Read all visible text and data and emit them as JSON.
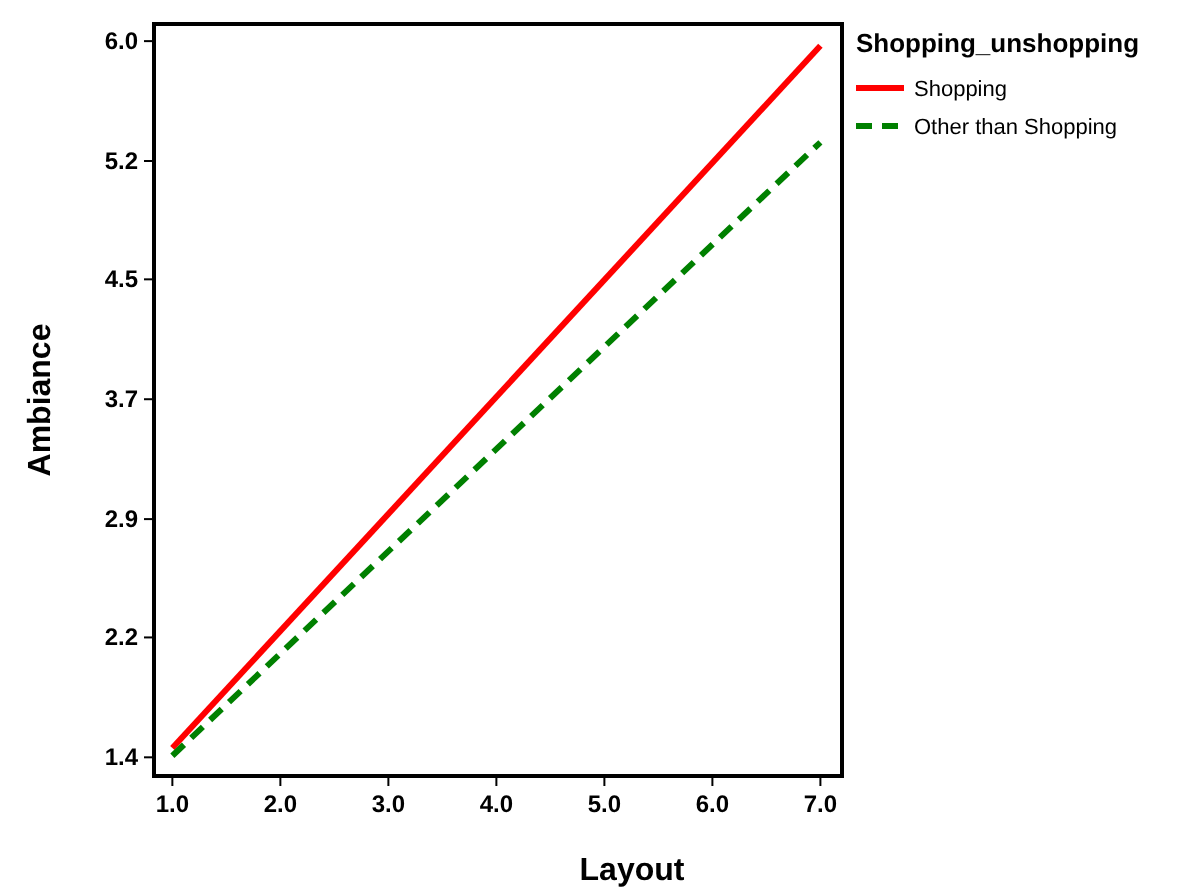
{
  "chart_data": {
    "type": "line",
    "xlabel": "Layout",
    "ylabel": "Ambiance",
    "legend_title": "Shopping_unshopping",
    "legend": "top right",
    "grid": false,
    "marker": "none",
    "x": [
      1,
      7
    ],
    "series": [
      {
        "name": "Shopping",
        "color": "#ff0000",
        "values": [
          1.46,
          5.97
        ],
        "line_style": "solid"
      },
      {
        "name": "Other than Shopping",
        "color": "#008000",
        "values": [
          1.41,
          5.35
        ],
        "line_style": "dashed"
      }
    ],
    "xlim": [
      0.83,
      7.2
    ],
    "xticks": [
      {
        "value": 1,
        "label": "1.0"
      },
      {
        "value": 2,
        "label": "2.0"
      },
      {
        "value": 3,
        "label": "3.0"
      },
      {
        "value": 4,
        "label": "4.0"
      },
      {
        "value": 5,
        "label": "5.0"
      },
      {
        "value": 6,
        "label": "6.0"
      },
      {
        "value": 7,
        "label": "7.0"
      }
    ],
    "ylim": [
      1.28,
      6.11
    ],
    "yticks": [
      {
        "value": 1.4,
        "label": "1.4"
      },
      {
        "value": 2.17,
        "label": "2.2"
      },
      {
        "value": 2.93,
        "label": "2.9"
      },
      {
        "value": 3.7,
        "label": "3.7"
      },
      {
        "value": 4.47,
        "label": "4.5"
      },
      {
        "value": 5.23,
        "label": "5.2"
      },
      {
        "value": 6,
        "label": "6.0"
      }
    ]
  }
}
